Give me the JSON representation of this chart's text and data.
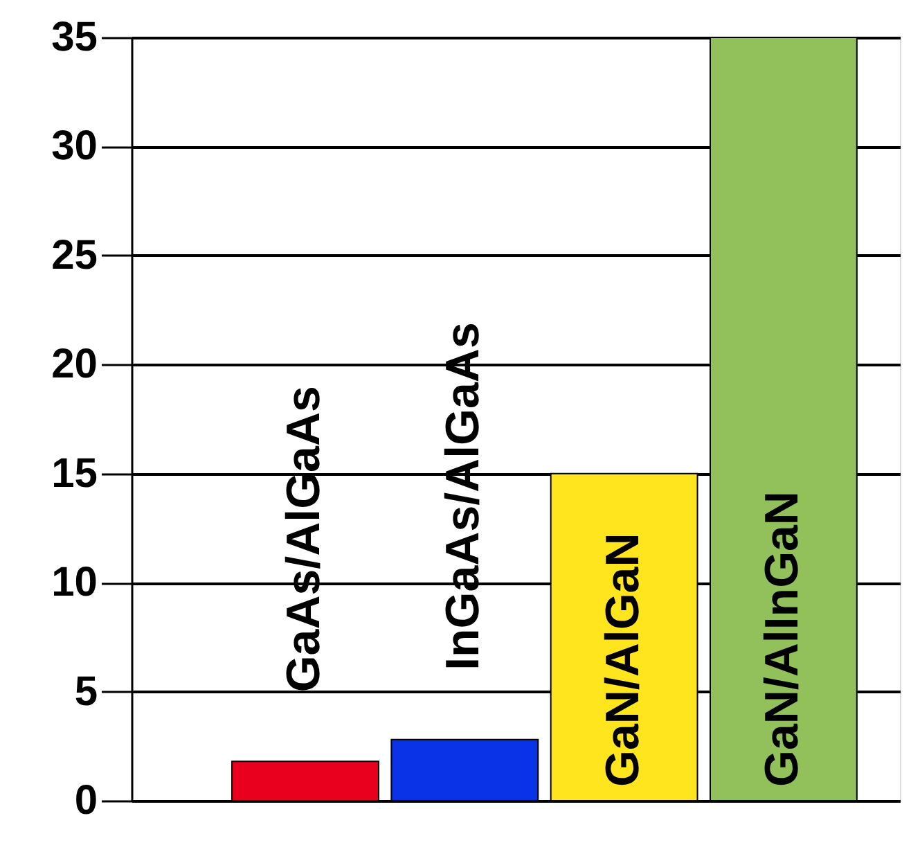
{
  "chart_data": {
    "type": "bar",
    "categories": [
      "GaAs/AlGaAs",
      "InGaAs/AlGaAs",
      "GaN/AlGaN",
      "GaN/AlInGaN"
    ],
    "values": [
      1.8,
      2.8,
      15,
      35
    ],
    "colors": [
      "#e8001e",
      "#0a32e6",
      "#ffe51e",
      "#92c05a"
    ],
    "ylim": [
      0,
      35
    ],
    "yticks": [
      0,
      5,
      10,
      15,
      20,
      25,
      30,
      35
    ],
    "grid": "y",
    "tick_labels": "y"
  }
}
